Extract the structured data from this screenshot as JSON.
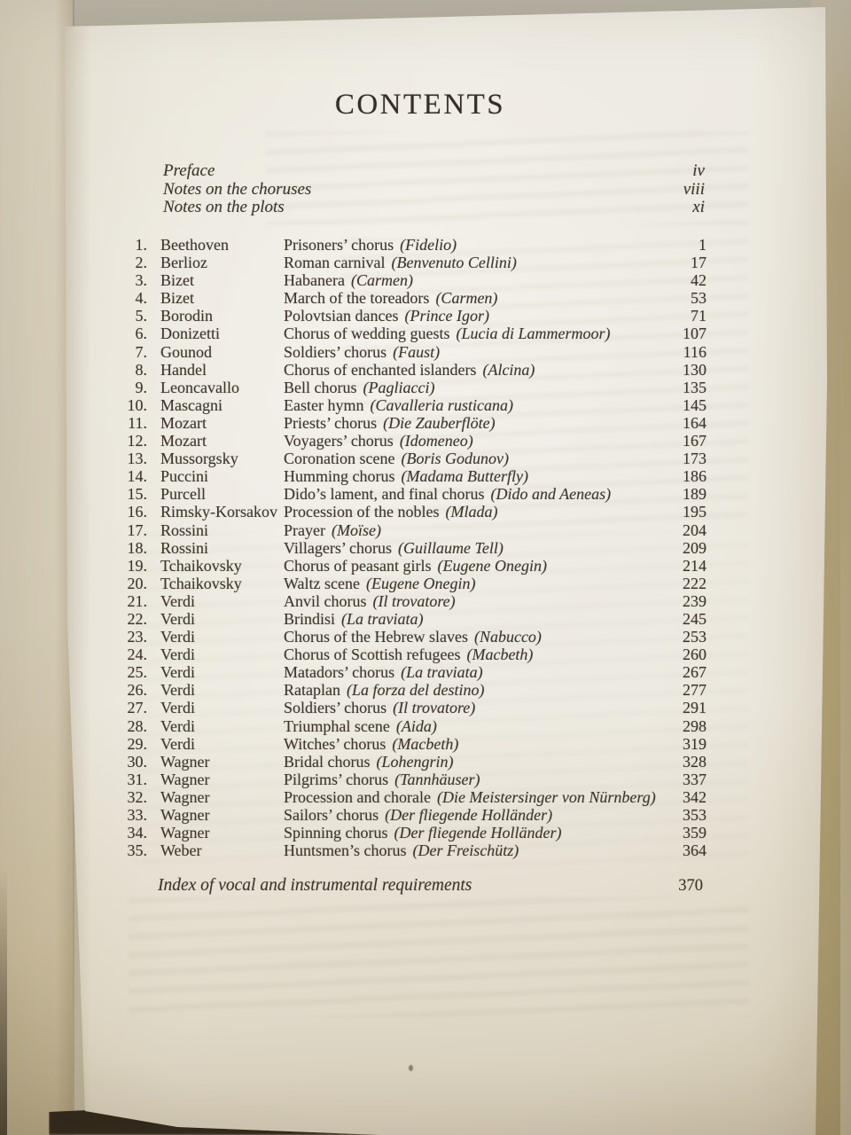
{
  "page": {
    "title": "CONTENTS",
    "front_matter": [
      {
        "label": "Preface",
        "page": "iv"
      },
      {
        "label": "Notes on the choruses",
        "page": "viii"
      },
      {
        "label": "Notes on the plots",
        "page": "xi"
      }
    ],
    "entries": [
      {
        "num": "1.",
        "composer": "Beethoven",
        "title": "Prisoners’ chorus",
        "work": "(Fidelio)",
        "page": "1"
      },
      {
        "num": "2.",
        "composer": "Berlioz",
        "title": "Roman carnival",
        "work": "(Benvenuto Cellini)",
        "page": "17"
      },
      {
        "num": "3.",
        "composer": "Bizet",
        "title": "Habanera",
        "work": "(Carmen)",
        "page": "42"
      },
      {
        "num": "4.",
        "composer": "Bizet",
        "title": "March of the toreadors",
        "work": "(Carmen)",
        "page": "53"
      },
      {
        "num": "5.",
        "composer": "Borodin",
        "title": "Polovtsian dances",
        "work": "(Prince Igor)",
        "page": "71"
      },
      {
        "num": "6.",
        "composer": "Donizetti",
        "title": "Chorus of wedding guests",
        "work": "(Lucia di Lammermoor)",
        "page": "107"
      },
      {
        "num": "7.",
        "composer": "Gounod",
        "title": "Soldiers’ chorus",
        "work": "(Faust)",
        "page": "116"
      },
      {
        "num": "8.",
        "composer": "Handel",
        "title": "Chorus of enchanted islanders",
        "work": "(Alcina)",
        "page": "130"
      },
      {
        "num": "9.",
        "composer": "Leoncavallo",
        "title": "Bell chorus",
        "work": "(Pagliacci)",
        "page": "135"
      },
      {
        "num": "10.",
        "composer": "Mascagni",
        "title": "Easter hymn",
        "work": "(Cavalleria rusticana)",
        "page": "145"
      },
      {
        "num": "11.",
        "composer": "Mozart",
        "title": "Priests’ chorus",
        "work": "(Die Zauberflöte)",
        "page": "164"
      },
      {
        "num": "12.",
        "composer": "Mozart",
        "title": "Voyagers’ chorus",
        "work": "(Idomeneo)",
        "page": "167"
      },
      {
        "num": "13.",
        "composer": "Mussorgsky",
        "title": "Coronation scene",
        "work": "(Boris Godunov)",
        "page": "173"
      },
      {
        "num": "14.",
        "composer": "Puccini",
        "title": "Humming chorus",
        "work": "(Madama Butterfly)",
        "page": "186"
      },
      {
        "num": "15.",
        "composer": "Purcell",
        "title": "Dido’s lament, and final chorus",
        "work": "(Dido and Aeneas)",
        "page": "189"
      },
      {
        "num": "16.",
        "composer": "Rimsky-Korsakov",
        "title": "Procession of the nobles",
        "work": "(Mlada)",
        "page": "195"
      },
      {
        "num": "17.",
        "composer": "Rossini",
        "title": "Prayer",
        "work": "(Moïse)",
        "page": "204"
      },
      {
        "num": "18.",
        "composer": "Rossini",
        "title": "Villagers’ chorus",
        "work": "(Guillaume Tell)",
        "page": "209"
      },
      {
        "num": "19.",
        "composer": "Tchaikovsky",
        "title": "Chorus of peasant girls",
        "work": "(Eugene Onegin)",
        "page": "214"
      },
      {
        "num": "20.",
        "composer": "Tchaikovsky",
        "title": "Waltz scene",
        "work": "(Eugene Onegin)",
        "page": "222"
      },
      {
        "num": "21.",
        "composer": "Verdi",
        "title": "Anvil chorus",
        "work": "(Il trovatore)",
        "page": "239"
      },
      {
        "num": "22.",
        "composer": "Verdi",
        "title": "Brindisi",
        "work": "(La traviata)",
        "page": "245"
      },
      {
        "num": "23.",
        "composer": "Verdi",
        "title": "Chorus of the Hebrew slaves",
        "work": "(Nabucco)",
        "page": "253"
      },
      {
        "num": "24.",
        "composer": "Verdi",
        "title": "Chorus of Scottish refugees",
        "work": "(Macbeth)",
        "page": "260"
      },
      {
        "num": "25.",
        "composer": "Verdi",
        "title": "Matadors’ chorus",
        "work": "(La traviata)",
        "page": "267"
      },
      {
        "num": "26.",
        "composer": "Verdi",
        "title": "Rataplan",
        "work": "(La forza del destino)",
        "page": "277"
      },
      {
        "num": "27.",
        "composer": "Verdi",
        "title": "Soldiers’ chorus",
        "work": "(Il trovatore)",
        "page": "291"
      },
      {
        "num": "28.",
        "composer": "Verdi",
        "title": "Triumphal scene",
        "work": "(Aida)",
        "page": "298"
      },
      {
        "num": "29.",
        "composer": "Verdi",
        "title": "Witches’ chorus",
        "work": "(Macbeth)",
        "page": "319"
      },
      {
        "num": "30.",
        "composer": "Wagner",
        "title": "Bridal chorus",
        "work": "(Lohengrin)",
        "page": "328"
      },
      {
        "num": "31.",
        "composer": "Wagner",
        "title": "Pilgrims’ chorus",
        "work": "(Tannhäuser)",
        "page": "337"
      },
      {
        "num": "32.",
        "composer": "Wagner",
        "title": "Procession and chorale",
        "work": "(Die Meistersinger von Nürnberg)",
        "page": "342"
      },
      {
        "num": "33.",
        "composer": "Wagner",
        "title": "Sailors’ chorus",
        "work": "(Der fliegende Holländer)",
        "page": "353"
      },
      {
        "num": "34.",
        "composer": "Wagner",
        "title": "Spinning chorus",
        "work": "(Der fliegende Holländer)",
        "page": "359"
      },
      {
        "num": "35.",
        "composer": "Weber",
        "title": "Huntsmen’s chorus",
        "work": "(Der Freischütz)",
        "page": "364"
      }
    ],
    "index_line": {
      "label": "Index of vocal and instrumental requirements",
      "page": "370"
    }
  },
  "colors": {
    "paper": "#efece3",
    "ink": "#3c352b",
    "surround_tan": "#b2a17c",
    "facing_page": "#d5ccb6",
    "gutter_shadow": "#32291c"
  }
}
